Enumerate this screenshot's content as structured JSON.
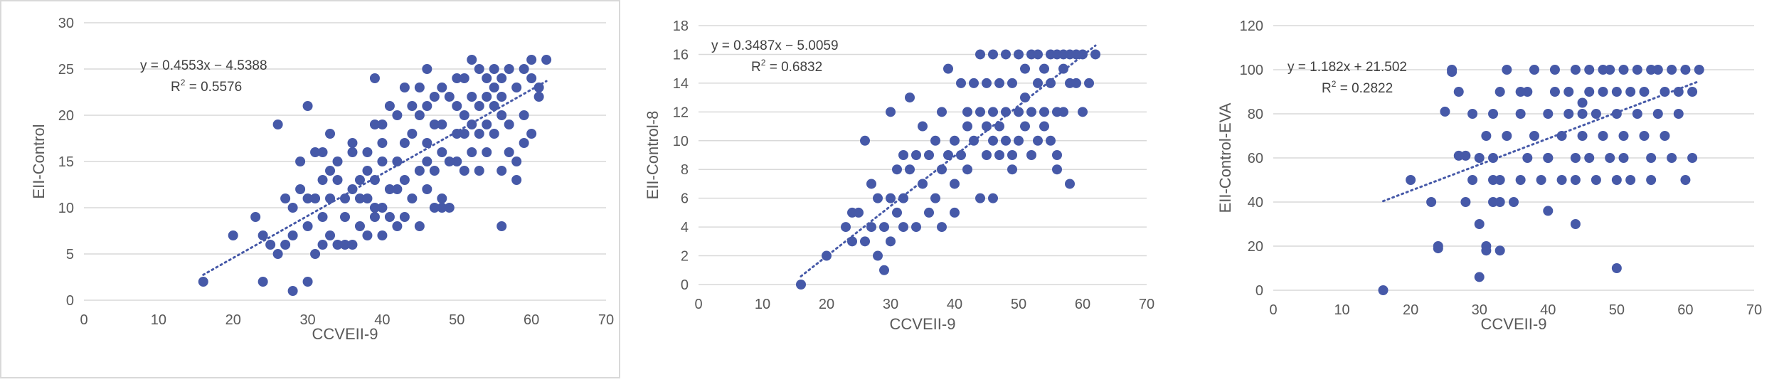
{
  "chart_data": [
    {
      "type": "scatter",
      "xlabel": "CCVEII-9",
      "ylabel": "EII-Control",
      "xlim": [
        0,
        70
      ],
      "ylim": [
        0,
        30
      ],
      "x_ticks": [
        "0",
        "10",
        "20",
        "30",
        "40",
        "50",
        "60",
        "70"
      ],
      "y_ticks": [
        "0",
        "5",
        "10",
        "15",
        "20",
        "25",
        "30"
      ],
      "equation": "y = 0.4553x − 4.5388",
      "r2_label": "R",
      "r2_value": " = 0.5576",
      "trendline": {
        "slope": 0.4553,
        "intercept": -4.5388,
        "x_range": [
          16,
          62
        ]
      },
      "series": [
        {
          "x": [
            16,
            20,
            23,
            24,
            25,
            26,
            27,
            27,
            28,
            28,
            29,
            29,
            30,
            30,
            30,
            31,
            31,
            31,
            32,
            32,
            32,
            32,
            33,
            33,
            33,
            33,
            34,
            34,
            34,
            35,
            35,
            35,
            36,
            36,
            36,
            36,
            37,
            37,
            37,
            38,
            38,
            38,
            38,
            39,
            39,
            39,
            39,
            40,
            40,
            40,
            40,
            40,
            41,
            41,
            41,
            42,
            42,
            42,
            42,
            43,
            43,
            43,
            43,
            44,
            44,
            44,
            45,
            45,
            45,
            45,
            46,
            46,
            46,
            46,
            46,
            47,
            47,
            47,
            47,
            48,
            48,
            48,
            48,
            49,
            49,
            49,
            50,
            50,
            50,
            50,
            51,
            51,
            51,
            51,
            52,
            52,
            52,
            52,
            53,
            53,
            53,
            53,
            54,
            54,
            54,
            54,
            55,
            55,
            55,
            55,
            56,
            56,
            56,
            56,
            57,
            57,
            57,
            58,
            58,
            58,
            59,
            59,
            59,
            60,
            60,
            60,
            61,
            61,
            62,
            30,
            26,
            39,
            48,
            56,
            24,
            28
          ],
          "y": [
            2,
            7,
            9,
            2,
            6,
            5,
            11,
            6,
            10,
            7,
            12,
            15,
            8,
            2,
            11,
            5,
            11,
            16,
            6,
            13,
            16,
            9,
            14,
            7,
            18,
            11,
            13,
            6,
            15,
            9,
            6,
            11,
            12,
            6,
            16,
            17,
            8,
            13,
            11,
            16,
            11,
            7,
            14,
            19,
            10,
            13,
            24,
            17,
            7,
            15,
            19,
            10,
            12,
            9,
            21,
            8,
            20,
            15,
            12,
            23,
            13,
            17,
            9,
            18,
            11,
            21,
            14,
            20,
            8,
            23,
            25,
            17,
            21,
            12,
            15,
            22,
            10,
            19,
            14,
            19,
            23,
            11,
            16,
            15,
            22,
            10,
            24,
            18,
            15,
            21,
            20,
            24,
            18,
            14,
            26,
            22,
            19,
            16,
            25,
            21,
            18,
            14,
            24,
            19,
            22,
            16,
            25,
            23,
            21,
            18,
            24,
            14,
            20,
            22,
            25,
            19,
            16,
            23,
            15,
            13,
            25,
            20,
            17,
            24,
            26,
            18,
            23,
            22,
            26,
            21,
            19,
            9,
            10,
            8,
            7,
            1
          ]
        }
      ]
    },
    {
      "type": "scatter",
      "xlabel": "CCVEII-9",
      "ylabel": "EII-Control-8",
      "xlim": [
        0,
        70
      ],
      "ylim": [
        0,
        18
      ],
      "x_ticks": [
        "0",
        "10",
        "20",
        "30",
        "40",
        "50",
        "60",
        "70"
      ],
      "y_ticks": [
        "0",
        "2",
        "4",
        "6",
        "8",
        "10",
        "12",
        "14",
        "16",
        "18"
      ],
      "equation": "y = 0.3487x − 5.0059",
      "r2_label": "R",
      "r2_value": " = 0.6832",
      "trendline": {
        "slope": 0.3487,
        "intercept": -5.0059,
        "x_range": [
          16,
          62
        ]
      },
      "series": [
        {
          "x": [
            16,
            20,
            23,
            24,
            24,
            25,
            26,
            26,
            27,
            27,
            28,
            28,
            29,
            29,
            30,
            30,
            30,
            31,
            31,
            32,
            32,
            32,
            33,
            33,
            34,
            34,
            35,
            35,
            36,
            36,
            37,
            37,
            38,
            38,
            38,
            39,
            39,
            40,
            40,
            40,
            41,
            41,
            42,
            42,
            42,
            43,
            43,
            44,
            44,
            44,
            45,
            45,
            45,
            46,
            46,
            46,
            47,
            47,
            47,
            48,
            48,
            48,
            49,
            49,
            50,
            50,
            50,
            51,
            51,
            51,
            52,
            52,
            52,
            53,
            53,
            53,
            54,
            54,
            54,
            55,
            55,
            55,
            56,
            56,
            56,
            57,
            57,
            57,
            58,
            58,
            58,
            59,
            59,
            60,
            60,
            61,
            62,
            46,
            49,
            56
          ],
          "y": [
            0,
            2,
            4,
            5,
            3,
            5,
            10,
            3,
            7,
            4,
            2,
            6,
            1,
            4,
            6,
            12,
            3,
            5,
            8,
            9,
            4,
            6,
            8,
            13,
            4,
            9,
            7,
            11,
            5,
            9,
            10,
            6,
            8,
            4,
            12,
            9,
            15,
            10,
            5,
            7,
            14,
            9,
            12,
            8,
            11,
            10,
            14,
            16,
            12,
            6,
            9,
            14,
            11,
            16,
            12,
            10,
            9,
            14,
            11,
            16,
            12,
            10,
            14,
            9,
            12,
            16,
            10,
            15,
            11,
            13,
            16,
            9,
            12,
            14,
            10,
            16,
            12,
            15,
            11,
            16,
            14,
            10,
            16,
            12,
            9,
            15,
            16,
            12,
            14,
            16,
            7,
            16,
            14,
            16,
            12,
            14,
            16,
            6,
            8,
            8
          ]
        }
      ]
    },
    {
      "type": "scatter",
      "xlabel": "CCVEII-9",
      "ylabel": "EII-Control-EVA",
      "xlim": [
        0,
        70
      ],
      "ylim": [
        0,
        120
      ],
      "x_ticks": [
        "0",
        "10",
        "20",
        "30",
        "40",
        "50",
        "60",
        "70"
      ],
      "y_ticks": [
        "0",
        "20",
        "40",
        "60",
        "80",
        "100",
        "120"
      ],
      "equation": "y = 1.182x + 21.502",
      "r2_label": "R",
      "r2_value": " = 0.2822",
      "trendline": {
        "slope": 1.182,
        "intercept": 21.502,
        "x_range": [
          16,
          62
        ]
      },
      "series": [
        {
          "x": [
            16,
            20,
            23,
            24,
            25,
            26,
            26,
            27,
            28,
            28,
            29,
            29,
            30,
            30,
            31,
            31,
            32,
            32,
            32,
            33,
            33,
            33,
            34,
            34,
            35,
            36,
            36,
            37,
            37,
            38,
            38,
            39,
            40,
            40,
            40,
            41,
            41,
            42,
            42,
            43,
            43,
            44,
            44,
            44,
            45,
            45,
            45,
            46,
            46,
            46,
            47,
            47,
            48,
            48,
            48,
            49,
            49,
            50,
            50,
            50,
            51,
            51,
            51,
            52,
            52,
            53,
            53,
            54,
            54,
            55,
            55,
            55,
            56,
            56,
            57,
            57,
            58,
            58,
            59,
            59,
            60,
            60,
            61,
            61,
            62,
            50,
            44,
            30,
            31,
            24,
            33,
            32,
            27,
            40,
            36
          ],
          "y": [
            0,
            50,
            40,
            19,
            81,
            100,
            99,
            90,
            61,
            40,
            50,
            80,
            60,
            6,
            70,
            20,
            80,
            50,
            60,
            90,
            50,
            18,
            100,
            70,
            40,
            80,
            50,
            90,
            60,
            100,
            70,
            50,
            80,
            36,
            60,
            90,
            100,
            70,
            50,
            80,
            90,
            100,
            60,
            50,
            85,
            70,
            80,
            90,
            100,
            60,
            80,
            50,
            100,
            70,
            90,
            60,
            100,
            90,
            50,
            80,
            100,
            70,
            60,
            90,
            50,
            100,
            80,
            70,
            90,
            100,
            50,
            60,
            80,
            100,
            70,
            90,
            100,
            60,
            90,
            80,
            50,
            100,
            90,
            60,
            100,
            10,
            30,
            30,
            18,
            20,
            40,
            40,
            61,
            60,
            90
          ]
        }
      ]
    }
  ]
}
